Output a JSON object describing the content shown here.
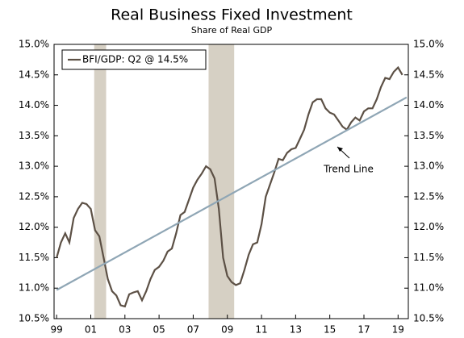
{
  "chart_data": {
    "type": "line",
    "title": "Real Business Fixed Investment",
    "subtitle": "Share of Real GDP",
    "x": [
      1999,
      1999.25,
      1999.5,
      1999.75,
      2000,
      2000.25,
      2000.5,
      2000.75,
      2001,
      2001.25,
      2001.5,
      2001.75,
      2002,
      2002.25,
      2002.5,
      2002.75,
      2003,
      2003.25,
      2003.5,
      2003.75,
      2004,
      2004.25,
      2004.5,
      2004.75,
      2005,
      2005.25,
      2005.5,
      2005.75,
      2006,
      2006.25,
      2006.5,
      2006.75,
      2007,
      2007.25,
      2007.5,
      2007.75,
      2008,
      2008.25,
      2008.5,
      2008.75,
      2009,
      2009.25,
      2009.5,
      2009.75,
      2010,
      2010.25,
      2010.5,
      2010.75,
      2011,
      2011.25,
      2011.5,
      2011.75,
      2012,
      2012.25,
      2012.5,
      2012.75,
      2013,
      2013.25,
      2013.5,
      2013.75,
      2014,
      2014.25,
      2014.5,
      2014.75,
      2015,
      2015.25,
      2015.5,
      2015.75,
      2016,
      2016.25,
      2016.5,
      2016.75,
      2017,
      2017.25,
      2017.5,
      2017.75,
      2018,
      2018.25,
      2018.5,
      2018.75,
      2019,
      2019.25
    ],
    "series": [
      {
        "name": "BFI/GDP: Q2 @ 14.5%",
        "color": "#5c5045",
        "values": [
          11.5,
          11.75,
          11.9,
          11.75,
          12.15,
          12.3,
          12.4,
          12.38,
          12.3,
          11.95,
          11.85,
          11.5,
          11.15,
          10.95,
          10.88,
          10.72,
          10.7,
          10.9,
          10.93,
          10.95,
          10.8,
          10.95,
          11.15,
          11.3,
          11.35,
          11.45,
          11.6,
          11.65,
          11.9,
          12.2,
          12.25,
          12.45,
          12.65,
          12.78,
          12.88,
          13.0,
          12.95,
          12.8,
          12.3,
          11.5,
          11.2,
          11.1,
          11.05,
          11.08,
          11.3,
          11.55,
          11.72,
          11.75,
          12.05,
          12.5,
          12.7,
          12.9,
          13.12,
          13.1,
          13.22,
          13.28,
          13.3,
          13.45,
          13.6,
          13.85,
          14.05,
          14.1,
          14.1,
          13.95,
          13.88,
          13.85,
          13.75,
          13.65,
          13.6,
          13.72,
          13.8,
          13.75,
          13.9,
          13.95,
          13.95,
          14.1,
          14.3,
          14.45,
          14.43,
          14.55,
          14.62,
          14.5
        ]
      },
      {
        "name": "Trend Line",
        "color": "#8fa6b5",
        "x": [
          1999,
          2019.5
        ],
        "values": [
          10.97,
          14.13
        ]
      }
    ],
    "recessions": [
      [
        2001.2,
        2001.9
      ],
      [
        2007.9,
        2009.4
      ]
    ],
    "recession_color": "#d6d0c4",
    "xlim": [
      1998.85,
      2019.6
    ],
    "xticks": [
      {
        "value": 1999,
        "label": "99"
      },
      {
        "value": 2001,
        "label": "01"
      },
      {
        "value": 2003,
        "label": "03"
      },
      {
        "value": 2005,
        "label": "05"
      },
      {
        "value": 2007,
        "label": "07"
      },
      {
        "value": 2009,
        "label": "09"
      },
      {
        "value": 2011,
        "label": "11"
      },
      {
        "value": 2013,
        "label": "13"
      },
      {
        "value": 2015,
        "label": "15"
      },
      {
        "value": 2017,
        "label": "17"
      },
      {
        "value": 2019,
        "label": "19"
      }
    ],
    "ylim": [
      10.5,
      15.0
    ],
    "yticks": [
      {
        "value": 10.5,
        "label": "10.5%"
      },
      {
        "value": 11.0,
        "label": "11.0%"
      },
      {
        "value": 11.5,
        "label": "11.5%"
      },
      {
        "value": 12.0,
        "label": "12.0%"
      },
      {
        "value": 12.5,
        "label": "12.5%"
      },
      {
        "value": 13.0,
        "label": "13.0%"
      },
      {
        "value": 13.5,
        "label": "13.5%"
      },
      {
        "value": 14.0,
        "label": "14.0%"
      },
      {
        "value": 14.5,
        "label": "14.5%"
      },
      {
        "value": 15.0,
        "label": "15.0%"
      }
    ],
    "legend": "upper left"
  }
}
